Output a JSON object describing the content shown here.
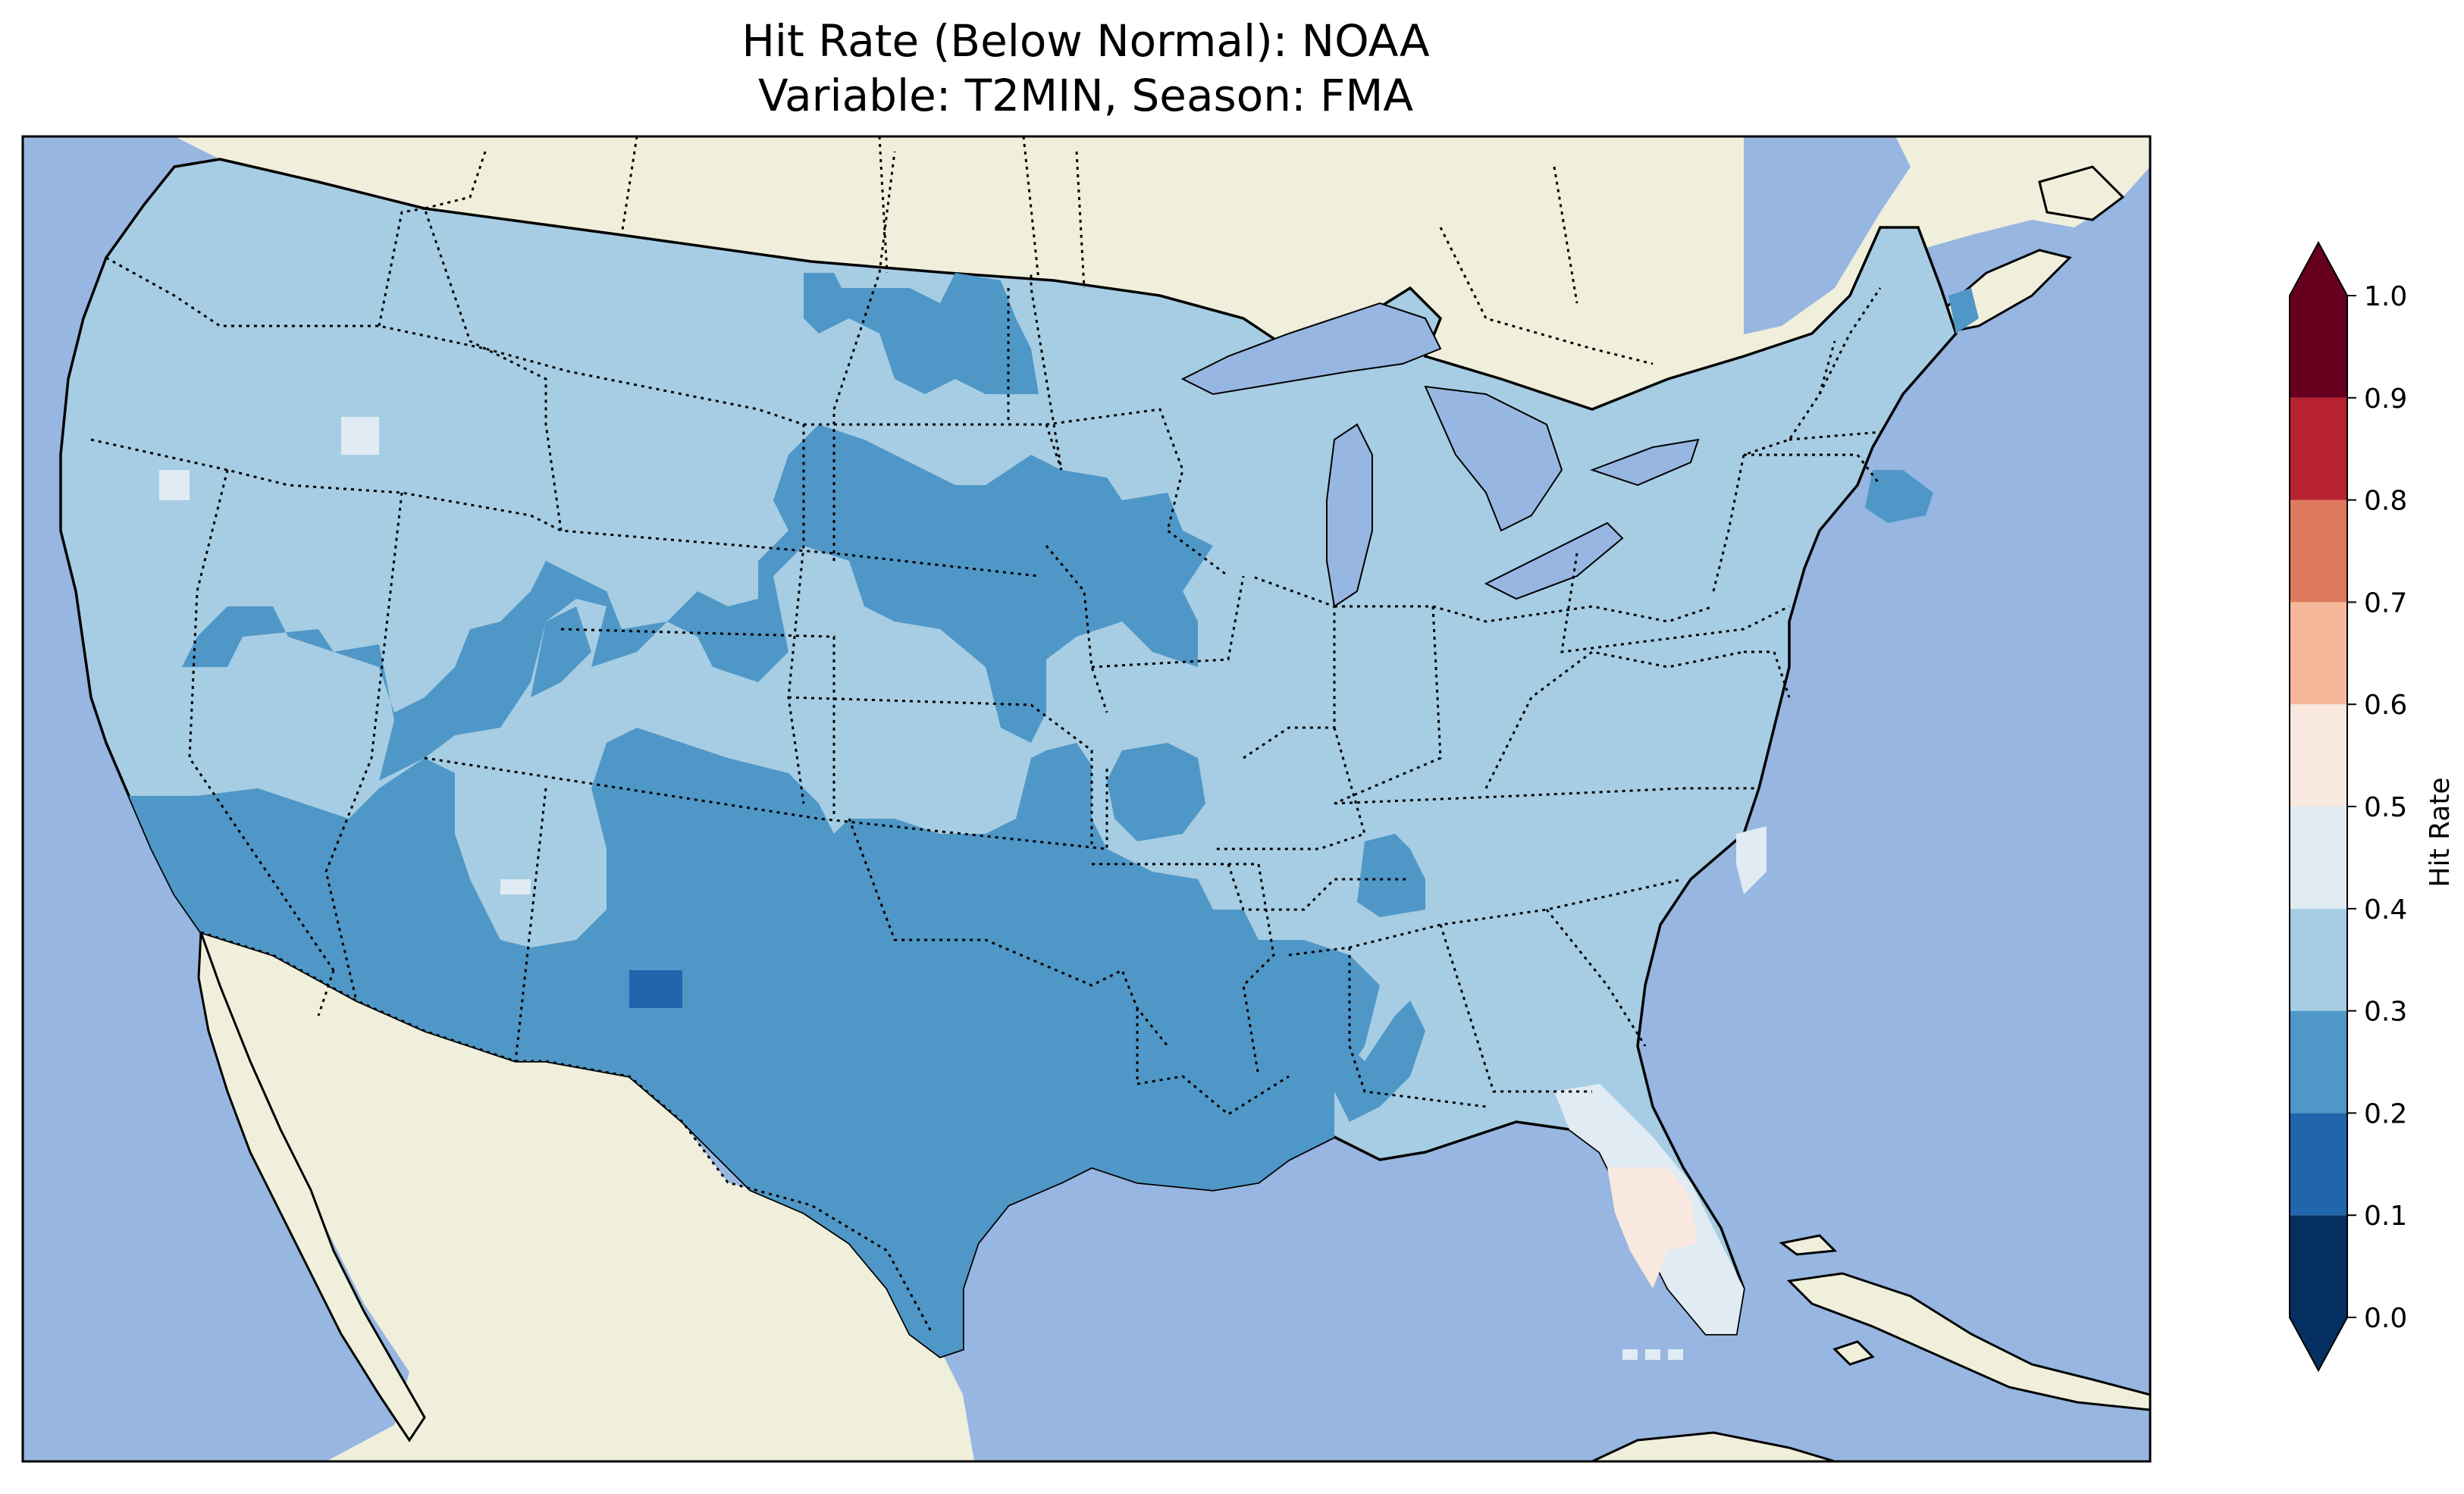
{
  "title": {
    "line1": "Hit Rate (Below Normal): NOAA",
    "line2": "Variable: T2MIN, Season: FMA"
  },
  "map": {
    "ocean_color": "#97b6e1",
    "land_color": "#efefdb",
    "region": "Contiguous United States",
    "borders": "coastlines (solid), state and national borders (dotted)"
  },
  "colorbar": {
    "label": "Hit Rate",
    "min": 0.0,
    "max": 1.0,
    "extend": "both",
    "ticks": [
      "0.0",
      "0.1",
      "0.2",
      "0.3",
      "0.4",
      "0.5",
      "0.6",
      "0.7",
      "0.8",
      "0.9",
      "1.0"
    ],
    "bins": [
      {
        "range": [
          0.0,
          0.1
        ],
        "color": "#053061"
      },
      {
        "range": [
          0.1,
          0.2
        ],
        "color": "#2166ac"
      },
      {
        "range": [
          0.2,
          0.3
        ],
        "color": "#4f97c7"
      },
      {
        "range": [
          0.3,
          0.4
        ],
        "color": "#a6cde3"
      },
      {
        "range": [
          0.4,
          0.5
        ],
        "color": "#e0ebf3"
      },
      {
        "range": [
          0.5,
          0.6
        ],
        "color": "#f8e8df"
      },
      {
        "range": [
          0.6,
          0.7
        ],
        "color": "#f5b89a"
      },
      {
        "range": [
          0.7,
          0.8
        ],
        "color": "#df7a5e"
      },
      {
        "range": [
          0.8,
          0.9
        ],
        "color": "#b72230"
      },
      {
        "range": [
          0.9,
          1.0
        ],
        "color": "#67001f"
      }
    ],
    "under_color": "#053061",
    "over_color": "#67001f"
  },
  "chart_data": {
    "type": "heatmap",
    "title": "Hit Rate (Below Normal): NOAA\nVariable: T2MIN, Season: FMA",
    "colorbar_label": "Hit Rate",
    "value_range": [
      0.0,
      1.0
    ],
    "regions": [
      {
        "area": "Pacific Northwest, Northern Rockies, Upper Midwest, Great Lakes, Ohio Valley, Northeast, Southeast",
        "value_bin": [
          0.3,
          0.4
        ]
      },
      {
        "area": "Southwest, Central Plains, Texas, Lower Mississippi Valley",
        "value_bin": [
          0.2,
          0.3
        ]
      },
      {
        "area": "Central North Dakota, Southeast New England, Northern Maine",
        "value_bin": [
          0.2,
          0.3
        ]
      },
      {
        "area": "Central New Mexico (small patch)",
        "value_bin": [
          0.1,
          0.2
        ]
      },
      {
        "area": "Northern Florida, Coastal North Carolina, isolated cells in Oregon/Idaho",
        "value_bin": [
          0.4,
          0.5
        ]
      },
      {
        "area": "Central Florida Peninsula",
        "value_bin": [
          0.5,
          0.6
        ]
      }
    ]
  }
}
